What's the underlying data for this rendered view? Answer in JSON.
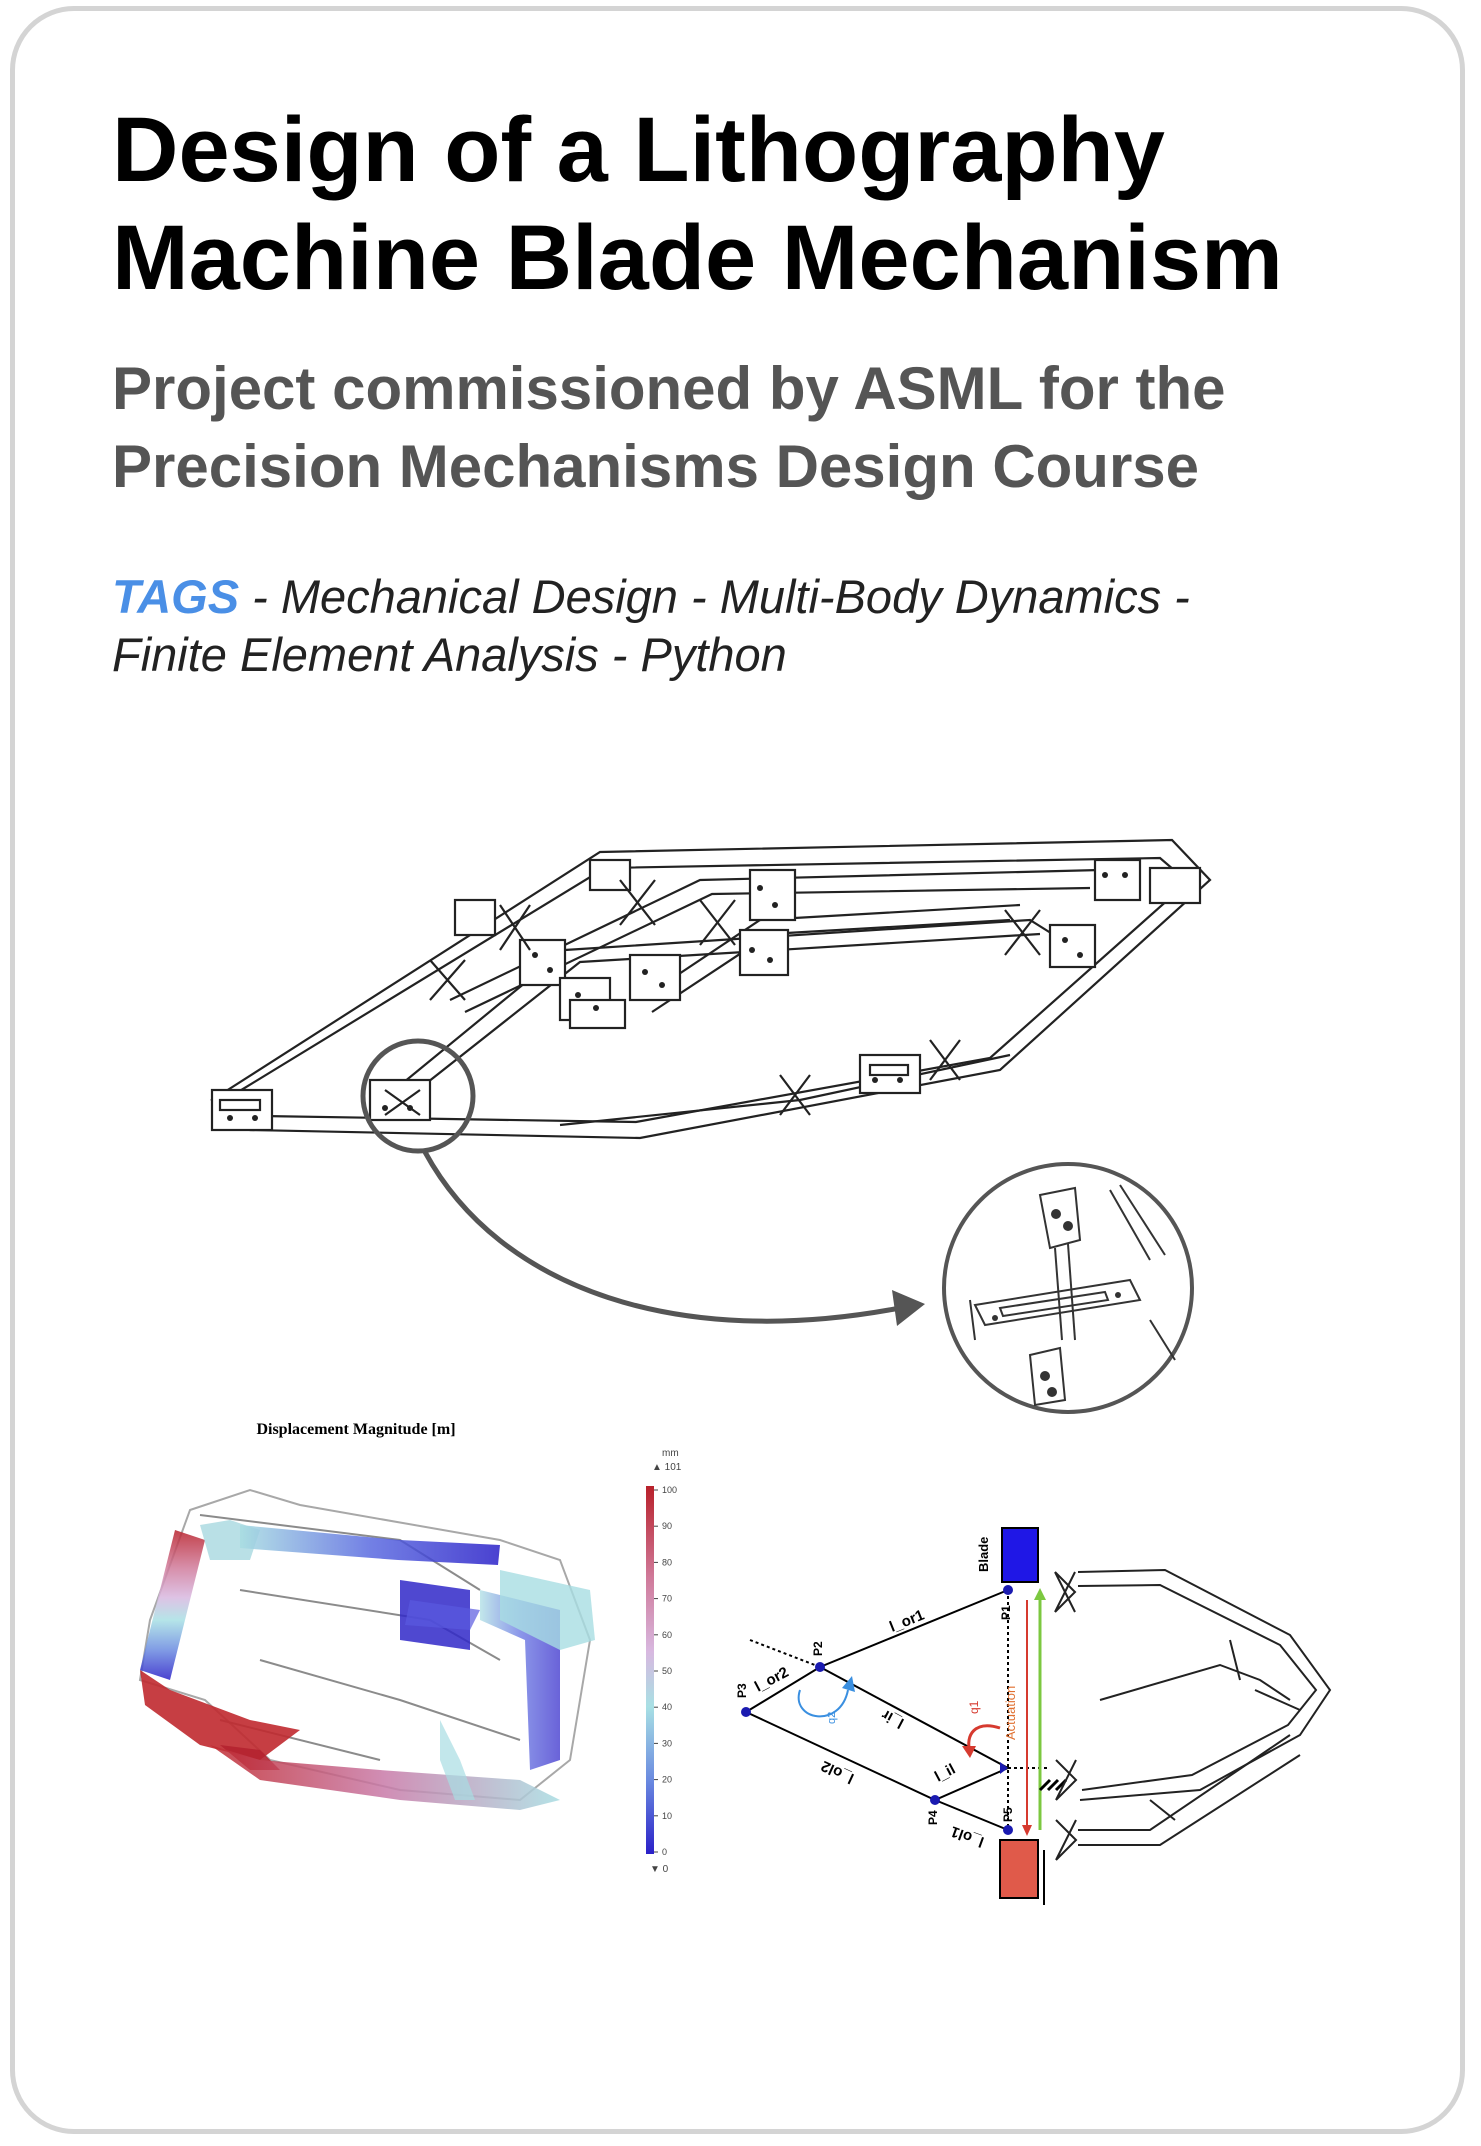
{
  "title_line1": "Design of a Lithography",
  "title_line2": "Machine Blade Mechanism",
  "subtitle_line1": "Project commissioned by ASML for the",
  "subtitle_line2": "Precision Mechanisms Design Course",
  "tags": {
    "key": "TAGS",
    "line1_rest": " - Mechanical Design - Multi-Body Dynamics -",
    "line2": "Finite Element Analysis - Python"
  },
  "fea": {
    "title": "Displacement Magnitude [m]",
    "unit": "mm",
    "max_marker": "▲ 101",
    "min_marker": "▼ 0",
    "scale_ticks": [
      "100",
      "90",
      "80",
      "70",
      "60",
      "50",
      "40",
      "30",
      "20",
      "10",
      "0"
    ],
    "colors": {
      "high": "#c0292f",
      "mid": "#c8a0d0",
      "light": "#9fd8df",
      "low": "#3a2fd0"
    }
  },
  "kinematic": {
    "labels": {
      "blade": "Blade",
      "actuation": "Actuation",
      "p1": "P1",
      "p2": "P2",
      "p3": "P3",
      "p4": "P4",
      "p5": "P5",
      "l_or1": "l_or1",
      "l_or2": "l_or2",
      "l_ir": "l_ir",
      "l_il": "l_il",
      "l_ol2": "l_ol2",
      "l_ol1": "l_ol1",
      "q1": "q1",
      "q2": "q2"
    },
    "colors": {
      "blade": "#1f17e6",
      "counter_mass": "#e05a4a",
      "actuation": "#e07030",
      "green": "#7cc840",
      "red": "#d63a2f",
      "q2": "#3a8fe0"
    }
  },
  "icons": [
    "cad-mechanism-drawing",
    "zoom-detail-circle",
    "arrow-icon",
    "flexure-hinge-detail"
  ]
}
